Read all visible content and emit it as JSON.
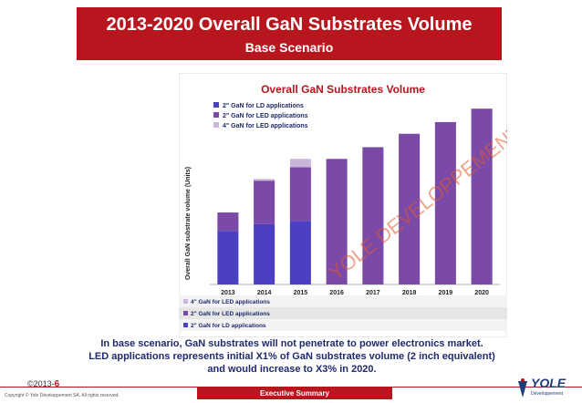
{
  "slide": {
    "title": "2013-2020 Overall GaN Substrates Volume",
    "subtitle": "Base Scenario",
    "caption_lines": [
      "In base scenario, GaN substrates will not penetrate to power electronics market.",
      "LED applications represents initial X1% of GaN substrates volume (2 inch equivalent)",
      "and would increase to X3% in 2020."
    ],
    "footer_copyright_prefix": "©2013-",
    "footer_page": "6",
    "footer_copyright": "Copyright © Yole Développement SA. All rights reserved.",
    "footer_section": "Executive Summary",
    "logo_text": "YOLE",
    "logo_subtext": "Développement",
    "watermark": "YOLE DEVELOPPEMENT"
  },
  "colors": {
    "brand_red": "#b8161f",
    "series_ld": "#4b3fc2",
    "series_led2": "#7b4aa8",
    "series_led4": "#c9b6da"
  },
  "chart_data": {
    "type": "bar",
    "title": "Overall GaN Substrates Volume",
    "ylabel": "Overall GaN substrate volume (Units)",
    "categories": [
      "2013",
      "2014",
      "2015",
      "2016",
      "2017",
      "2018",
      "2019",
      "2020"
    ],
    "ylim": [
      0,
      110
    ],
    "stacked": true,
    "legend_position": "top-left",
    "series": [
      {
        "name": "2\" GaN for LD applications",
        "color": "#4b3fc2",
        "values": [
          32,
          36,
          38,
          0,
          0,
          0,
          0,
          0
        ]
      },
      {
        "name": "2\" GaN for LED applications",
        "color": "#7b4aa8",
        "values": [
          11,
          26,
          32,
          75,
          82,
          90,
          97,
          105
        ]
      },
      {
        "name": "4\" GaN for LED applications",
        "color": "#c9b6da",
        "values": [
          0,
          1,
          5,
          0,
          0,
          0,
          0,
          0
        ]
      }
    ],
    "table_rows_order": [
      "4\" GaN for LED applications",
      "2\" GaN for LED applications",
      "2\" GaN for LD applications"
    ]
  }
}
